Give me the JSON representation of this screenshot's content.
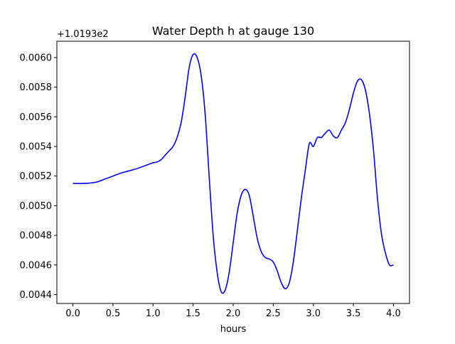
{
  "chart_data": {
    "type": "line",
    "title": "Water Depth h at gauge 130",
    "xlabel": "hours",
    "ylabel": "",
    "y_offset_label": "+1.0193e2",
    "xlim": [
      -0.2,
      4.2
    ],
    "ylim": [
      0.00434,
      0.00611
    ],
    "x_ticks": [
      0.0,
      0.5,
      1.0,
      1.5,
      2.0,
      2.5,
      3.0,
      3.5,
      4.0
    ],
    "x_tick_labels": [
      "0.0",
      "0.5",
      "1.0",
      "1.5",
      "2.0",
      "2.5",
      "3.0",
      "3.5",
      "4.0"
    ],
    "y_ticks": [
      0.0044,
      0.0046,
      0.0048,
      0.005,
      0.0052,
      0.0054,
      0.0056,
      0.0058,
      0.006
    ],
    "y_tick_labels": [
      "0.0044",
      "0.0046",
      "0.0048",
      "0.0050",
      "0.0052",
      "0.0054",
      "0.0056",
      "0.0058",
      "0.0060"
    ],
    "grid": false,
    "series": [
      {
        "color": "#0000ff",
        "x": [
          0.0,
          0.1,
          0.2,
          0.3,
          0.4,
          0.5,
          0.6,
          0.7,
          0.8,
          0.9,
          0.95,
          1.0,
          1.05,
          1.1,
          1.15,
          1.2,
          1.25,
          1.3,
          1.35,
          1.4,
          1.45,
          1.5,
          1.55,
          1.6,
          1.65,
          1.7,
          1.75,
          1.8,
          1.85,
          1.9,
          1.95,
          2.0,
          2.05,
          2.1,
          2.15,
          2.2,
          2.25,
          2.3,
          2.35,
          2.4,
          2.45,
          2.5,
          2.55,
          2.6,
          2.65,
          2.7,
          2.75,
          2.8,
          2.85,
          2.9,
          2.95,
          3.0,
          3.05,
          3.1,
          3.15,
          3.2,
          3.25,
          3.3,
          3.35,
          3.4,
          3.45,
          3.5,
          3.55,
          3.6,
          3.65,
          3.7,
          3.75,
          3.8,
          3.85,
          3.9,
          3.95,
          4.0
        ],
        "values": [
          0.00515,
          0.00515,
          0.005152,
          0.00516,
          0.00518,
          0.0052,
          0.00522,
          0.005235,
          0.00525,
          0.00527,
          0.00528,
          0.00529,
          0.005295,
          0.00531,
          0.00534,
          0.00537,
          0.0054,
          0.00546,
          0.00556,
          0.00573,
          0.00593,
          0.00602,
          0.006,
          0.00588,
          0.00562,
          0.0052,
          0.0048,
          0.00455,
          0.00442,
          0.00443,
          0.00455,
          0.00475,
          0.00495,
          0.00507,
          0.00511,
          0.00507,
          0.00493,
          0.00478,
          0.00469,
          0.00465,
          0.00464,
          0.00462,
          0.00456,
          0.00448,
          0.00444,
          0.00448,
          0.00462,
          0.00483,
          0.00505,
          0.00524,
          0.00542,
          0.0054,
          0.00546,
          0.00546,
          0.00549,
          0.00551,
          0.00547,
          0.00546,
          0.00551,
          0.00556,
          0.00565,
          0.00576,
          0.00584,
          0.00585,
          0.00578,
          0.00562,
          0.00538,
          0.00505,
          0.00481,
          0.00468,
          0.0046,
          0.0046
        ]
      }
    ]
  }
}
